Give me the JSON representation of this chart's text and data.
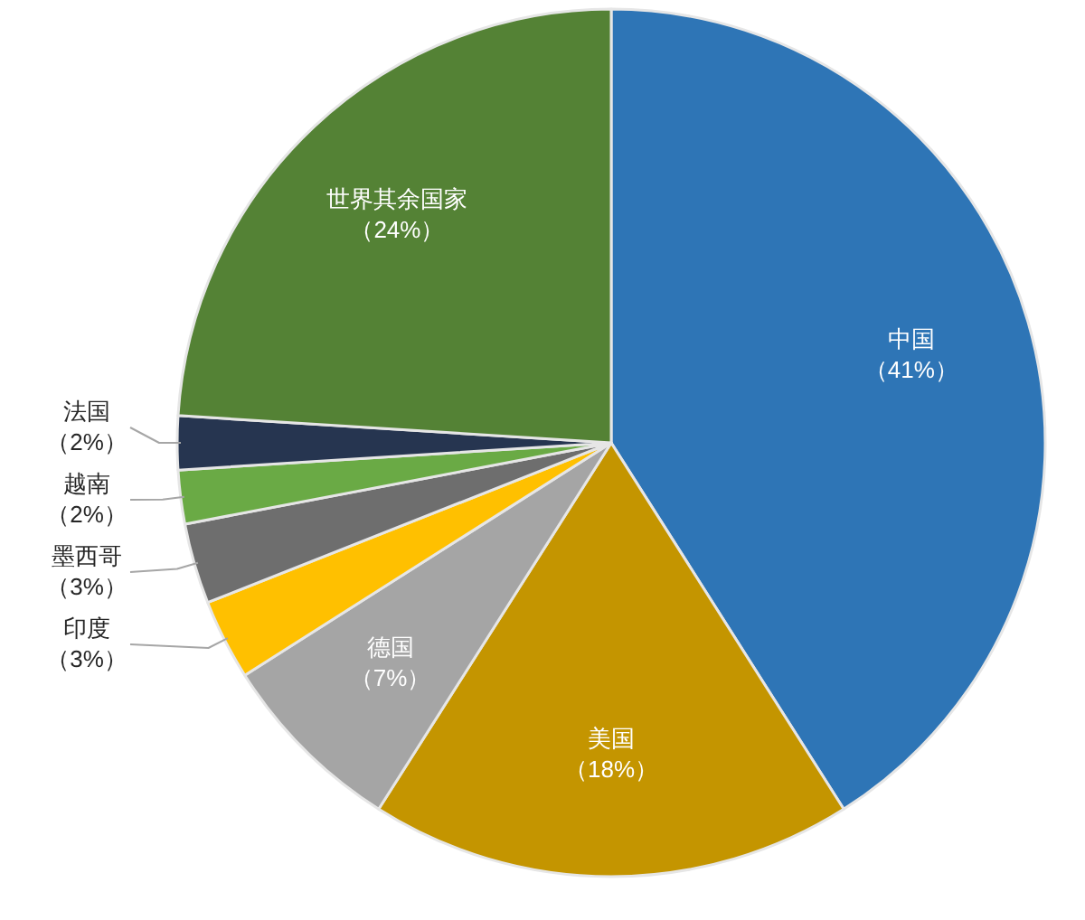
{
  "chart_data": {
    "type": "pie",
    "categories": [
      "中国",
      "美国",
      "德国",
      "印度",
      "墨西哥",
      "越南",
      "法国",
      "世界其余国家"
    ],
    "values": [
      41,
      18,
      7,
      3,
      3,
      2,
      2,
      24
    ],
    "colors": [
      "#2e75b6",
      "#c49500",
      "#a5a5a5",
      "#ffc000",
      "#6e6e6e",
      "#6aaa45",
      "#263550",
      "#548235"
    ],
    "value_labels": [
      "（41%）",
      "（18%）",
      "（7%）",
      "（3%）",
      "（3%）",
      "（2%）",
      "（2%）",
      "（24%）"
    ]
  }
}
